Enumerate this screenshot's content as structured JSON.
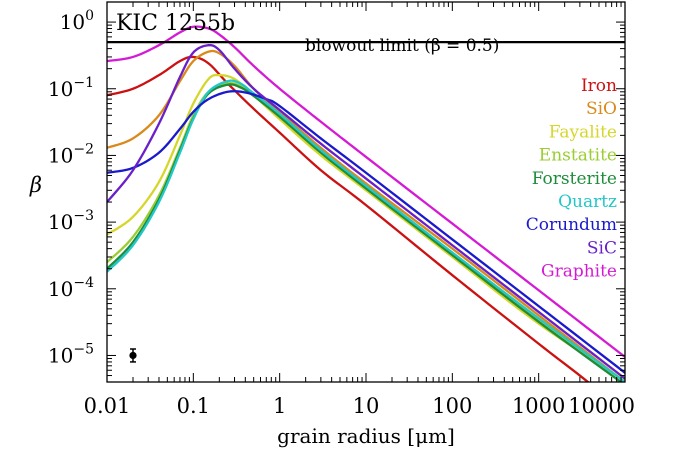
{
  "chart_data": {
    "type": "line",
    "title": "KIC 1255b",
    "xlabel": "grain radius [μm]",
    "ylabel": "β",
    "xscale": "log",
    "yscale": "log",
    "xlim": [
      0.01,
      10000
    ],
    "ylim": [
      4e-06,
      2.0
    ],
    "grid": false,
    "legend_placement": "right",
    "x_ticks": [
      {
        "value": 0.01,
        "label": "0.01"
      },
      {
        "value": 0.1,
        "label": "0.1"
      },
      {
        "value": 1,
        "label": "1"
      },
      {
        "value": 10,
        "label": "10"
      },
      {
        "value": 100,
        "label": "100"
      },
      {
        "value": 1000,
        "label": "1000"
      },
      {
        "value": 10000,
        "label": "10000"
      }
    ],
    "y_ticks": [
      {
        "value": 1,
        "base": "10",
        "exp": "0"
      },
      {
        "value": 0.1,
        "base": "10",
        "exp": "−1"
      },
      {
        "value": 0.01,
        "base": "10",
        "exp": "−2"
      },
      {
        "value": 0.001,
        "base": "10",
        "exp": "−3"
      },
      {
        "value": 0.0001,
        "base": "10",
        "exp": "−4"
      },
      {
        "value": 1e-05,
        "base": "10",
        "exp": "−5"
      }
    ],
    "reference_line": {
      "value": 0.5,
      "label": "blowout limit (β = 0.5)",
      "color": "#000000"
    },
    "error_point": {
      "x": 0.02,
      "y": 1e-05,
      "y_low": 8e-06,
      "y_high": 1.25e-05
    },
    "series": [
      {
        "name": "Iron",
        "color": "#cc1111",
        "x": [
          0.01,
          0.02,
          0.04,
          0.07,
          0.1,
          0.15,
          0.25,
          0.5,
          1,
          3,
          10,
          100,
          1000,
          3000,
          6000
        ],
        "y": [
          0.08,
          0.1,
          0.16,
          0.26,
          0.3,
          0.24,
          0.12,
          0.05,
          0.022,
          0.006,
          0.0018,
          0.00016,
          1.5e-05,
          5e-06,
          2.4e-06
        ]
      },
      {
        "name": "SiO",
        "color": "#d98a1a",
        "x": [
          0.01,
          0.02,
          0.04,
          0.07,
          0.1,
          0.15,
          0.2,
          0.3,
          0.5,
          1,
          3,
          10,
          100,
          1000,
          10000
        ],
        "y": [
          0.013,
          0.018,
          0.04,
          0.13,
          0.26,
          0.36,
          0.34,
          0.22,
          0.1,
          0.045,
          0.013,
          0.0038,
          0.0004,
          4e-05,
          4e-06
        ]
      },
      {
        "name": "Fayalite",
        "color": "#d6d62a",
        "x": [
          0.01,
          0.02,
          0.04,
          0.07,
          0.1,
          0.15,
          0.2,
          0.3,
          0.5,
          1,
          3,
          10,
          100,
          1000,
          10000
        ],
        "y": [
          0.00065,
          0.0012,
          0.004,
          0.02,
          0.06,
          0.14,
          0.16,
          0.14,
          0.08,
          0.035,
          0.01,
          0.003,
          0.0003,
          3e-05,
          4.2e-06
        ]
      },
      {
        "name": "Enstatite",
        "color": "#9acd32",
        "x": [
          0.01,
          0.02,
          0.04,
          0.07,
          0.1,
          0.15,
          0.25,
          0.35,
          0.5,
          1,
          3,
          10,
          100,
          1000,
          10000
        ],
        "y": [
          0.00025,
          0.0006,
          0.0025,
          0.013,
          0.04,
          0.09,
          0.12,
          0.11,
          0.08,
          0.04,
          0.011,
          0.0033,
          0.00033,
          3.3e-05,
          3.6e-06
        ]
      },
      {
        "name": "Forsterite",
        "color": "#1e8c3a",
        "x": [
          0.01,
          0.02,
          0.04,
          0.07,
          0.1,
          0.15,
          0.25,
          0.35,
          0.5,
          1,
          3,
          10,
          100,
          1000,
          10000
        ],
        "y": [
          0.0002,
          0.0005,
          0.0022,
          0.012,
          0.036,
          0.085,
          0.115,
          0.105,
          0.078,
          0.038,
          0.011,
          0.0032,
          0.00032,
          3.2e-05,
          3.6e-06
        ]
      },
      {
        "name": "Quartz",
        "color": "#22c7c7",
        "x": [
          0.01,
          0.02,
          0.04,
          0.07,
          0.1,
          0.15,
          0.25,
          0.35,
          0.5,
          1,
          3,
          10,
          100,
          1000,
          10000
        ],
        "y": [
          0.00018,
          0.00045,
          0.002,
          0.011,
          0.035,
          0.09,
          0.13,
          0.12,
          0.085,
          0.042,
          0.012,
          0.0035,
          0.00035,
          3.6e-05,
          4e-06
        ]
      },
      {
        "name": "Corundum",
        "color": "#1a1acc",
        "x": [
          0.01,
          0.02,
          0.04,
          0.07,
          0.1,
          0.15,
          0.25,
          0.4,
          0.7,
          1,
          3,
          10,
          100,
          1000,
          10000
        ],
        "y": [
          0.0055,
          0.0065,
          0.011,
          0.025,
          0.045,
          0.07,
          0.09,
          0.088,
          0.07,
          0.055,
          0.018,
          0.0055,
          0.00055,
          5.5e-05,
          5.5e-06
        ]
      },
      {
        "name": "SiC",
        "color": "#6a1fc9",
        "x": [
          0.01,
          0.02,
          0.04,
          0.07,
          0.1,
          0.15,
          0.2,
          0.3,
          0.5,
          1,
          3,
          10,
          100,
          1000,
          10000
        ],
        "y": [
          0.002,
          0.006,
          0.03,
          0.15,
          0.35,
          0.45,
          0.38,
          0.2,
          0.1,
          0.048,
          0.015,
          0.0045,
          0.00045,
          4.5e-05,
          4.5e-06
        ]
      },
      {
        "name": "Graphite",
        "color": "#d41ad4",
        "x": [
          0.01,
          0.02,
          0.04,
          0.07,
          0.1,
          0.15,
          0.2,
          0.3,
          0.5,
          1,
          3,
          10,
          100,
          1000,
          10000
        ],
        "y": [
          0.26,
          0.3,
          0.45,
          0.7,
          0.85,
          0.8,
          0.65,
          0.42,
          0.22,
          0.1,
          0.032,
          0.0095,
          0.00095,
          9.5e-05,
          9.5e-06
        ]
      }
    ]
  }
}
